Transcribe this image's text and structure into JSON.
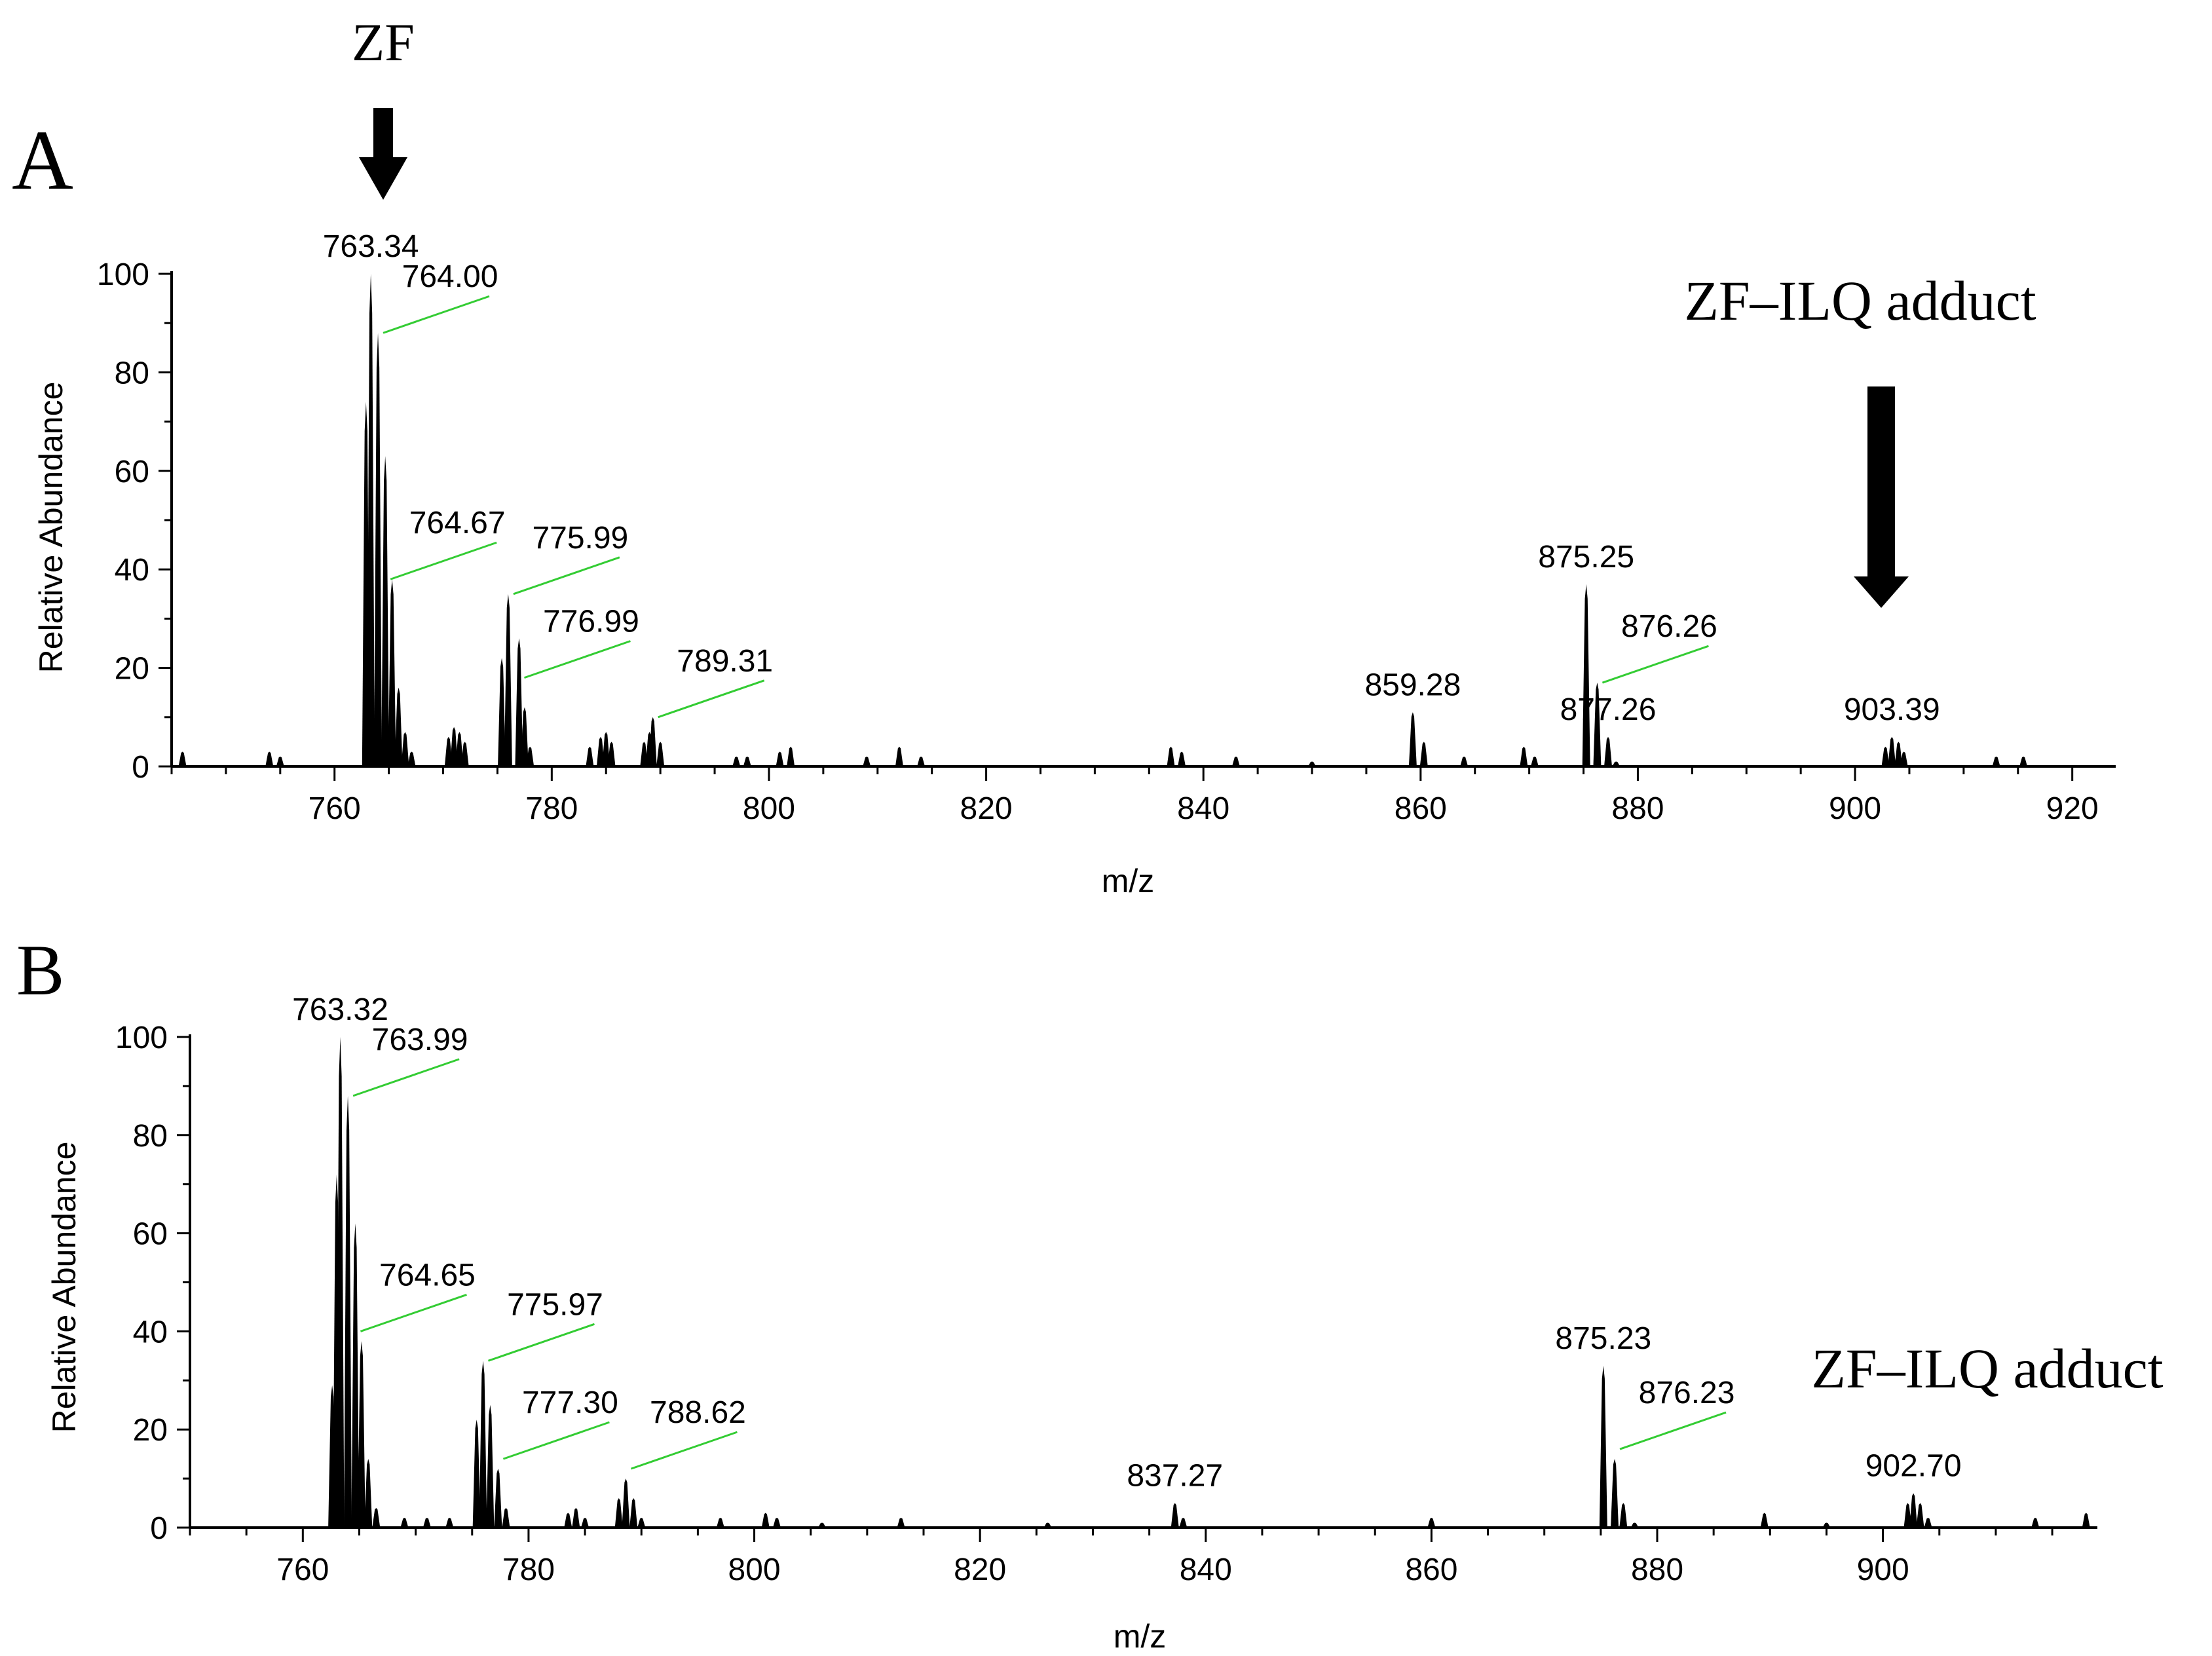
{
  "figure": {
    "zf_label": "ZF",
    "adduct_label_a": "ZF–ILQ adduct",
    "adduct_label_b": "ZF–ILQ adduct",
    "colors": {
      "trace": "#000000",
      "leader": "#33cc33",
      "background": "#ffffff"
    }
  },
  "chart_data": [
    {
      "type": "line",
      "panel_label": "A",
      "xlabel": "m/z",
      "ylabel": "Relative Abundance",
      "xlim": [
        745,
        924
      ],
      "ylim": [
        0,
        100
      ],
      "x_ticks": [
        760,
        780,
        800,
        820,
        840,
        860,
        880,
        900,
        920
      ],
      "y_ticks": [
        0,
        20,
        40,
        60,
        80,
        100
      ],
      "peaks": [
        {
          "x": 746.0,
          "y": 3
        },
        {
          "x": 754.0,
          "y": 3
        },
        {
          "x": 755.0,
          "y": 2
        },
        {
          "x": 762.9,
          "y": 74
        },
        {
          "x": 763.34,
          "y": 100
        },
        {
          "x": 764.0,
          "y": 88
        },
        {
          "x": 764.67,
          "y": 63
        },
        {
          "x": 765.3,
          "y": 38
        },
        {
          "x": 765.9,
          "y": 16
        },
        {
          "x": 766.5,
          "y": 7
        },
        {
          "x": 767.1,
          "y": 3
        },
        {
          "x": 770.5,
          "y": 6
        },
        {
          "x": 771.0,
          "y": 8
        },
        {
          "x": 771.5,
          "y": 7
        },
        {
          "x": 772.0,
          "y": 5
        },
        {
          "x": 775.4,
          "y": 22
        },
        {
          "x": 775.99,
          "y": 35
        },
        {
          "x": 776.99,
          "y": 26
        },
        {
          "x": 777.5,
          "y": 12
        },
        {
          "x": 778.0,
          "y": 4
        },
        {
          "x": 783.5,
          "y": 4
        },
        {
          "x": 784.5,
          "y": 6
        },
        {
          "x": 785.0,
          "y": 7
        },
        {
          "x": 785.5,
          "y": 5
        },
        {
          "x": 788.5,
          "y": 5
        },
        {
          "x": 789.0,
          "y": 7
        },
        {
          "x": 789.31,
          "y": 10
        },
        {
          "x": 790.0,
          "y": 5
        },
        {
          "x": 797.0,
          "y": 2
        },
        {
          "x": 798.0,
          "y": 2
        },
        {
          "x": 801.0,
          "y": 3
        },
        {
          "x": 802.0,
          "y": 4
        },
        {
          "x": 809.0,
          "y": 2
        },
        {
          "x": 812.0,
          "y": 4
        },
        {
          "x": 814.0,
          "y": 2
        },
        {
          "x": 837.0,
          "y": 4
        },
        {
          "x": 838.0,
          "y": 3
        },
        {
          "x": 843.0,
          "y": 2
        },
        {
          "x": 850.0,
          "y": 1
        },
        {
          "x": 859.28,
          "y": 11
        },
        {
          "x": 860.3,
          "y": 5
        },
        {
          "x": 864.0,
          "y": 2
        },
        {
          "x": 869.5,
          "y": 4
        },
        {
          "x": 870.5,
          "y": 2
        },
        {
          "x": 875.25,
          "y": 37
        },
        {
          "x": 876.26,
          "y": 17
        },
        {
          "x": 877.26,
          "y": 6
        },
        {
          "x": 878.0,
          "y": 1
        },
        {
          "x": 902.8,
          "y": 4
        },
        {
          "x": 903.39,
          "y": 6
        },
        {
          "x": 904.0,
          "y": 5
        },
        {
          "x": 904.5,
          "y": 3
        },
        {
          "x": 913.0,
          "y": 2
        },
        {
          "x": 915.5,
          "y": 2
        }
      ],
      "peak_labels": [
        {
          "text": "763.34",
          "x": 763.34,
          "y": 100,
          "leader": false
        },
        {
          "text": "764.00",
          "x": 764.0,
          "y": 88,
          "leader": true
        },
        {
          "text": "764.67",
          "x": 764.67,
          "y": 38,
          "leader": true
        },
        {
          "text": "775.99",
          "x": 775.99,
          "y": 35,
          "leader": true
        },
        {
          "text": "776.99",
          "x": 776.99,
          "y": 18,
          "leader": true
        },
        {
          "text": "789.31",
          "x": 789.31,
          "y": 10,
          "leader": true
        },
        {
          "text": "859.28",
          "x": 859.28,
          "y": 11,
          "leader": false
        },
        {
          "text": "875.25",
          "x": 875.25,
          "y": 37,
          "leader": false
        },
        {
          "text": "876.26",
          "x": 876.26,
          "y": 17,
          "leader": true
        },
        {
          "text": "877.26",
          "x": 877.26,
          "y": 6,
          "leader": false
        },
        {
          "text": "903.39",
          "x": 903.39,
          "y": 6,
          "leader": false
        }
      ]
    },
    {
      "type": "line",
      "panel_label": "B",
      "xlabel": "m/z",
      "ylabel": "Relative Abundance",
      "xlim": [
        750,
        919
      ],
      "ylim": [
        0,
        100
      ],
      "x_ticks": [
        760,
        780,
        800,
        820,
        840,
        860,
        880,
        900
      ],
      "y_ticks": [
        0,
        20,
        40,
        60,
        80,
        100
      ],
      "peaks": [
        {
          "x": 762.6,
          "y": 29
        },
        {
          "x": 763.0,
          "y": 72
        },
        {
          "x": 763.32,
          "y": 100
        },
        {
          "x": 763.99,
          "y": 88
        },
        {
          "x": 764.65,
          "y": 62
        },
        {
          "x": 765.2,
          "y": 38
        },
        {
          "x": 765.8,
          "y": 14
        },
        {
          "x": 766.5,
          "y": 4
        },
        {
          "x": 769.0,
          "y": 2
        },
        {
          "x": 771.0,
          "y": 2
        },
        {
          "x": 773.0,
          "y": 2
        },
        {
          "x": 775.4,
          "y": 22
        },
        {
          "x": 775.97,
          "y": 34
        },
        {
          "x": 776.6,
          "y": 25
        },
        {
          "x": 777.3,
          "y": 12
        },
        {
          "x": 778.0,
          "y": 4
        },
        {
          "x": 783.5,
          "y": 3
        },
        {
          "x": 784.2,
          "y": 4
        },
        {
          "x": 785.0,
          "y": 2
        },
        {
          "x": 788.0,
          "y": 6
        },
        {
          "x": 788.62,
          "y": 10
        },
        {
          "x": 789.3,
          "y": 6
        },
        {
          "x": 790.0,
          "y": 2
        },
        {
          "x": 797.0,
          "y": 2
        },
        {
          "x": 801.0,
          "y": 3
        },
        {
          "x": 802.0,
          "y": 2
        },
        {
          "x": 806.0,
          "y": 1
        },
        {
          "x": 813.0,
          "y": 2
        },
        {
          "x": 826.0,
          "y": 1
        },
        {
          "x": 837.27,
          "y": 5
        },
        {
          "x": 838.0,
          "y": 2
        },
        {
          "x": 860.0,
          "y": 2
        },
        {
          "x": 875.23,
          "y": 33
        },
        {
          "x": 876.23,
          "y": 14
        },
        {
          "x": 877.0,
          "y": 5
        },
        {
          "x": 878.0,
          "y": 1
        },
        {
          "x": 889.5,
          "y": 3
        },
        {
          "x": 895.0,
          "y": 1
        },
        {
          "x": 902.2,
          "y": 5
        },
        {
          "x": 902.7,
          "y": 7
        },
        {
          "x": 903.3,
          "y": 5
        },
        {
          "x": 904.0,
          "y": 2
        },
        {
          "x": 913.5,
          "y": 2
        },
        {
          "x": 918.0,
          "y": 3
        }
      ],
      "peak_labels": [
        {
          "text": "763.32",
          "x": 763.32,
          "y": 100,
          "leader": false
        },
        {
          "text": "763.99",
          "x": 763.99,
          "y": 88,
          "leader": true
        },
        {
          "text": "764.65",
          "x": 764.65,
          "y": 40,
          "leader": true
        },
        {
          "text": "775.97",
          "x": 775.97,
          "y": 34,
          "leader": true
        },
        {
          "text": "777.30",
          "x": 777.3,
          "y": 14,
          "leader": true
        },
        {
          "text": "788.62",
          "x": 788.62,
          "y": 12,
          "leader": true
        },
        {
          "text": "837.27",
          "x": 837.27,
          "y": 5,
          "leader": false
        },
        {
          "text": "875.23",
          "x": 875.23,
          "y": 33,
          "leader": false
        },
        {
          "text": "876.23",
          "x": 876.23,
          "y": 16,
          "leader": true
        },
        {
          "text": "902.70",
          "x": 902.7,
          "y": 7,
          "leader": false
        }
      ]
    }
  ]
}
